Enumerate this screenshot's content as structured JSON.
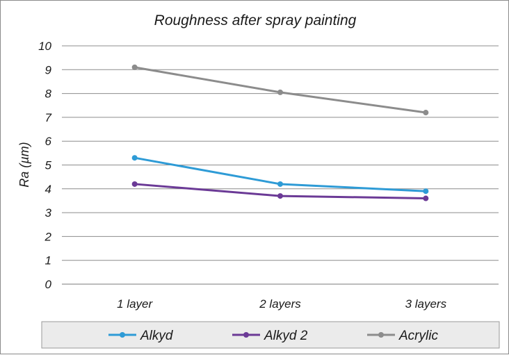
{
  "chart_data": {
    "type": "line",
    "title": "Roughness after spray painting",
    "xlabel": "",
    "ylabel": "Ra (µm)",
    "categories": [
      "1 layer",
      "2 layers",
      "3 layers"
    ],
    "ylim": [
      0,
      10
    ],
    "yticks": [
      0,
      1,
      2,
      3,
      4,
      5,
      6,
      7,
      8,
      9,
      10
    ],
    "grid": true,
    "legend_position": "bottom",
    "series": [
      {
        "name": "Alkyd",
        "color": "#2e9bd6",
        "values": [
          5.3,
          4.2,
          3.9
        ]
      },
      {
        "name": "Alkyd 2",
        "color": "#6b3a96",
        "values": [
          4.2,
          3.7,
          3.6
        ]
      },
      {
        "name": "Acrylic",
        "color": "#8c8c8c",
        "values": [
          9.1,
          8.05,
          7.2
        ]
      }
    ]
  }
}
